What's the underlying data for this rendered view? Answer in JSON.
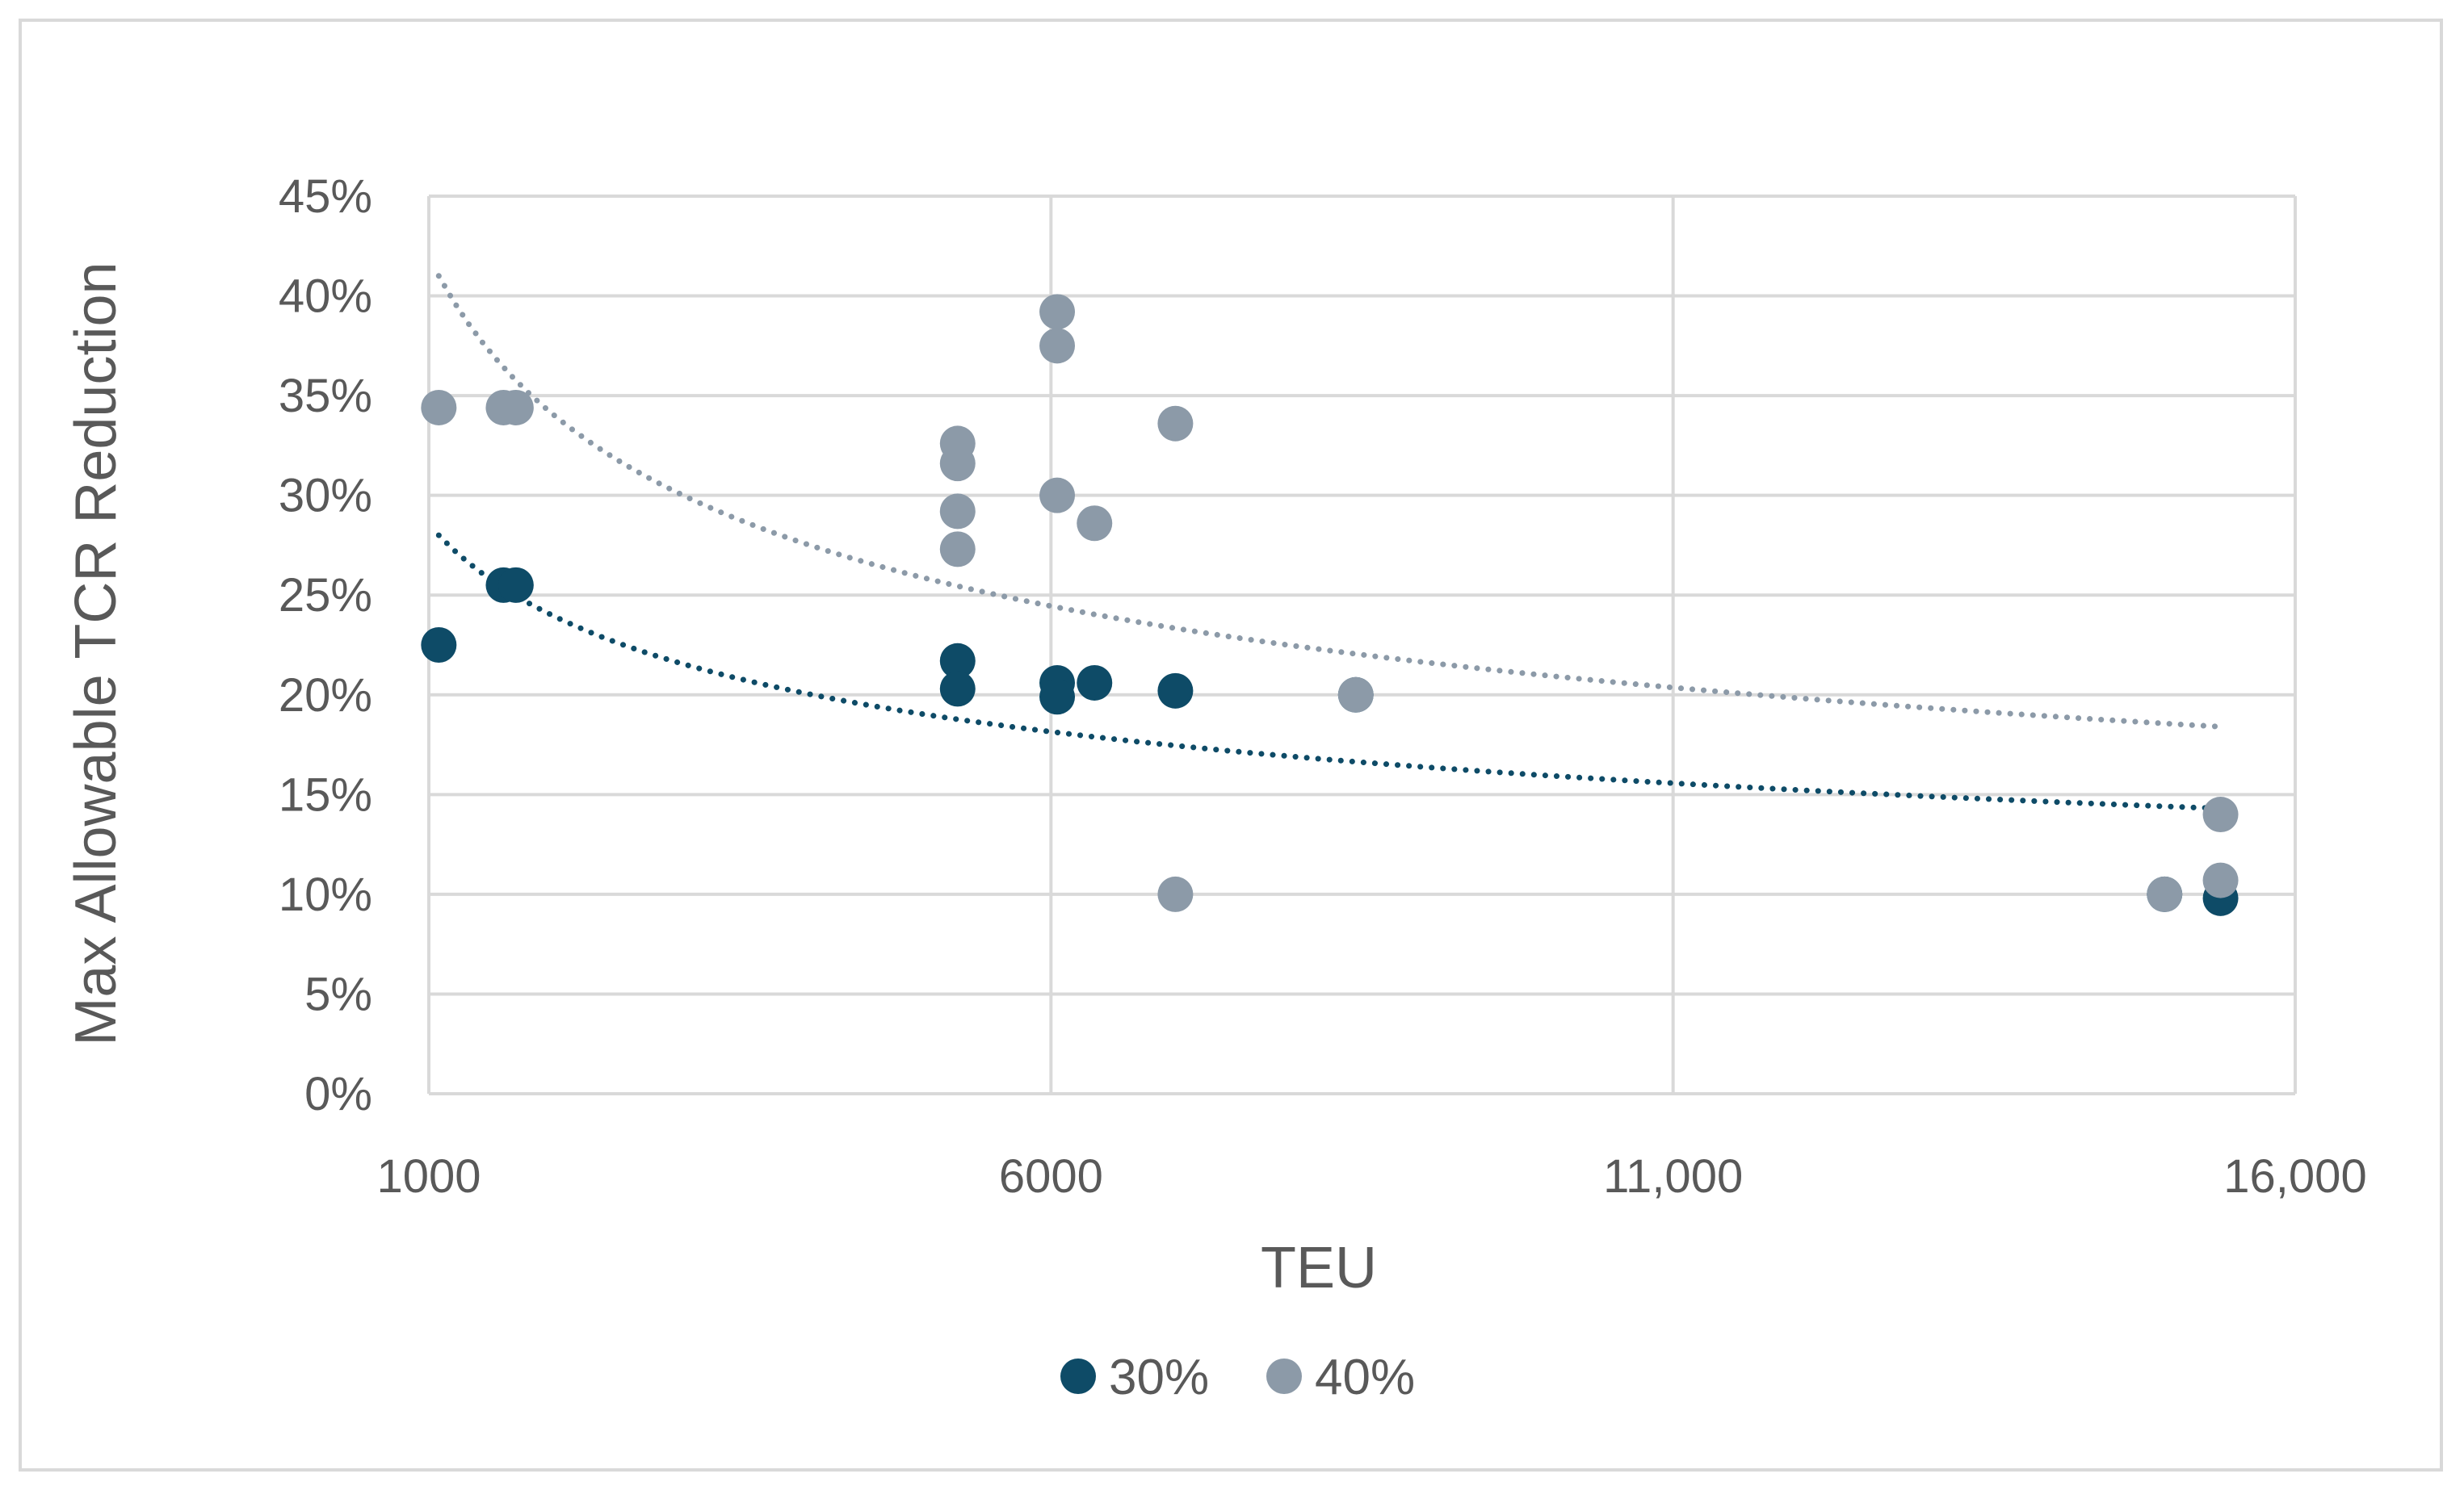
{
  "chart_data": {
    "type": "scatter",
    "title": "",
    "xlabel": "TEU",
    "ylabel": "Max Allowable TCR Reduction",
    "xlim": [
      1000,
      16000
    ],
    "ylim": [
      0,
      0.45
    ],
    "x_ticks": [
      1000,
      6000,
      11000,
      16000
    ],
    "x_tick_labels": [
      "1000",
      "6000",
      "11,000",
      "16,000"
    ],
    "y_ticks": [
      0,
      0.05,
      0.1,
      0.15,
      0.2,
      0.25,
      0.3,
      0.35,
      0.4,
      0.45
    ],
    "y_tick_labels": [
      "0%",
      "5%",
      "10%",
      "15%",
      "20%",
      "25%",
      "30%",
      "35%",
      "40%",
      "45%"
    ],
    "grid": true,
    "legend_position": "bottom",
    "series": [
      {
        "name": "30%",
        "color": "#0e4b67",
        "points": [
          {
            "x": 1080,
            "y": 0.225
          },
          {
            "x": 1600,
            "y": 0.255
          },
          {
            "x": 1700,
            "y": 0.255
          },
          {
            "x": 5250,
            "y": 0.217
          },
          {
            "x": 5250,
            "y": 0.203
          },
          {
            "x": 6050,
            "y": 0.206
          },
          {
            "x": 6050,
            "y": 0.199
          },
          {
            "x": 6350,
            "y": 0.206
          },
          {
            "x": 7000,
            "y": 0.202
          },
          {
            "x": 8450,
            "y": 0.2
          },
          {
            "x": 14950,
            "y": 0.1
          },
          {
            "x": 15400,
            "y": 0.098
          }
        ],
        "trendline": {
          "type": "power",
          "x_start": 1080,
          "x_end": 15400,
          "y_start": 0.28,
          "y_end": 0.143
        }
      },
      {
        "name": "40%",
        "color": "#8c9aa8",
        "points": [
          {
            "x": 1080,
            "y": 0.344
          },
          {
            "x": 1600,
            "y": 0.344
          },
          {
            "x": 1700,
            "y": 0.344
          },
          {
            "x": 5250,
            "y": 0.326
          },
          {
            "x": 5250,
            "y": 0.316
          },
          {
            "x": 5250,
            "y": 0.292
          },
          {
            "x": 5250,
            "y": 0.273
          },
          {
            "x": 6050,
            "y": 0.392
          },
          {
            "x": 6050,
            "y": 0.375
          },
          {
            "x": 6050,
            "y": 0.3
          },
          {
            "x": 6350,
            "y": 0.286
          },
          {
            "x": 7000,
            "y": 0.336
          },
          {
            "x": 7000,
            "y": 0.1
          },
          {
            "x": 8450,
            "y": 0.2
          },
          {
            "x": 14950,
            "y": 0.1
          },
          {
            "x": 15400,
            "y": 0.14
          },
          {
            "x": 15400,
            "y": 0.107
          }
        ],
        "trendline": {
          "type": "power",
          "x_start": 1080,
          "x_end": 15400,
          "y_start": 0.41,
          "y_end": 0.184
        }
      }
    ]
  }
}
